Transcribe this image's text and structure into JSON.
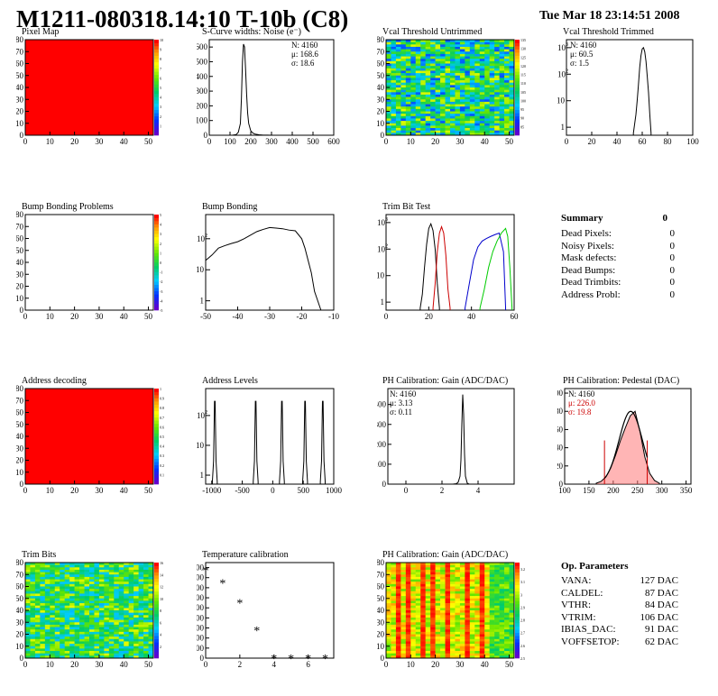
{
  "header": {
    "title": "M1211-080318.14:10 T-10b (C8)",
    "date": "Tue Mar 18 23:14:51 2008"
  },
  "panels": {
    "pixel_map": {
      "title": "Pixel Map",
      "x_ticks": [
        "0",
        "10",
        "20",
        "30",
        "40",
        "50"
      ],
      "y_ticks": [
        "0",
        "10",
        "20",
        "30",
        "40",
        "50",
        "60",
        "70",
        "80"
      ],
      "z_ticks": [
        "1",
        "2",
        "3",
        "4",
        "5",
        "6",
        "7",
        "8",
        "9",
        "10"
      ]
    },
    "noise": {
      "title": "S-Curve widths: Noise (e⁻)",
      "stats": [
        "N: 4160",
        "μ: 168.6",
        "σ: 18.6"
      ],
      "x_ticks": [
        "0",
        "100",
        "200",
        "300",
        "400",
        "500",
        "600"
      ],
      "y_ticks": [
        "0",
        "100",
        "200",
        "300",
        "400",
        "500",
        "600"
      ]
    },
    "vcal_untrimmed": {
      "title": "Vcal Threshold Untrimmed",
      "z_ticks": [
        "85",
        "90",
        "95",
        "100",
        "105",
        "110",
        "115",
        "120",
        "125",
        "130",
        "135"
      ]
    },
    "vcal_trimmed": {
      "title": "Vcal Threshold Trimmed",
      "stats": [
        "N: 4160",
        "μ: 60.5",
        "σ:  1.5"
      ],
      "x_ticks": [
        "0",
        "20",
        "40",
        "60",
        "80",
        "100"
      ]
    },
    "bump_problems": {
      "title": "Bump Bonding Problems",
      "z_ticks": [
        "-5",
        "-4",
        "-3",
        "-2",
        "-1",
        "0",
        "1",
        "2",
        "3",
        "4",
        "5"
      ]
    },
    "bump_bonding": {
      "title": "Bump Bonding",
      "x_ticks": [
        "-50",
        "-40",
        "-30",
        "-20",
        "-10"
      ]
    },
    "trim_bit": {
      "title": "Trim Bit Test",
      "x_ticks": [
        "0",
        "20",
        "40",
        "60"
      ]
    },
    "address_decoding": {
      "title": "Address decoding",
      "z_ticks": [
        "0.1",
        "0.2",
        "0.3",
        "0.4",
        "0.5",
        "0.6",
        "0.7",
        "0.8",
        "0.9",
        "1"
      ]
    },
    "address_levels": {
      "title": "Address Levels",
      "x_ticks": [
        "-1000",
        "-500",
        "0",
        "500",
        "1000"
      ]
    },
    "ph_gain": {
      "title": "PH Calibration: Gain (ADC/DAC)",
      "stats": [
        "N: 4160",
        "μ: 3.13",
        "σ: 0.11"
      ],
      "x_ticks": [
        "0",
        "2",
        "4"
      ],
      "y_ticks": [
        "0",
        "100",
        "200",
        "300",
        "400"
      ]
    },
    "ph_pedestal": {
      "title": "PH Calibration: Pedestal (DAC)",
      "stats": [
        "N: 4160",
        "μ: 226.0",
        "σ: 19.8"
      ],
      "x_ticks": [
        "100",
        "150",
        "200",
        "250",
        "300",
        "350"
      ],
      "y_ticks": [
        "0",
        "20",
        "40",
        "60",
        "80",
        "100"
      ]
    },
    "trim_bits": {
      "title": "Trim Bits",
      "z_ticks": [
        "2",
        "4",
        "6",
        "8",
        "10",
        "12",
        "14",
        "16"
      ]
    },
    "temperature": {
      "title": "Temperature calibration",
      "x_ticks": [
        "0",
        "2",
        "4",
        "6"
      ],
      "y_ticks": [
        "0",
        "200",
        "400",
        "600",
        "800",
        "1000",
        "1200",
        "1400",
        "1600",
        "1800"
      ]
    },
    "ph_gain_map": {
      "title": "PH Calibration: Gain (ADC/DAC)",
      "z_ticks": [
        "2.5",
        "2.6",
        "2.7",
        "2.8",
        "2.9",
        "3",
        "3.1",
        "3.2"
      ]
    }
  },
  "summary": {
    "heading": "Summary",
    "heading_value": "0",
    "rows": [
      {
        "label": "Dead Pixels:",
        "value": "0"
      },
      {
        "label": "Noisy Pixels:",
        "value": "0"
      },
      {
        "label": "Mask defects:",
        "value": "0"
      },
      {
        "label": "Dead Bumps:",
        "value": "0"
      },
      {
        "label": "Dead Trimbits:",
        "value": "0"
      },
      {
        "label": "Address Probl:",
        "value": "0"
      }
    ]
  },
  "op_params": {
    "heading": "Op. Parameters",
    "rows": [
      {
        "label": "VANA:",
        "value": "127 DAC"
      },
      {
        "label": "CALDEL:",
        "value": "87 DAC"
      },
      {
        "label": "VTHR:",
        "value": "84 DAC"
      },
      {
        "label": "VTRIM:",
        "value": "106 DAC"
      },
      {
        "label": "IBIAS_DAC:",
        "value": "91 DAC"
      },
      {
        "label": "VOFFSETOP:",
        "value": "62 DAC"
      }
    ]
  },
  "chart_data": [
    {
      "type": "heatmap",
      "title": "Pixel Map",
      "xlim": [
        0,
        52
      ],
      "ylim": [
        0,
        80
      ],
      "zlim": [
        0,
        10
      ],
      "fill_value": 10,
      "color": "#ff0000"
    },
    {
      "type": "line",
      "title": "S-Curve widths: Noise (e⁻)",
      "xlim": [
        0,
        600
      ],
      "ylim": [
        0,
        650
      ],
      "x": [
        100,
        110,
        120,
        130,
        140,
        150,
        155,
        160,
        165,
        170,
        175,
        180,
        185,
        190,
        200,
        210,
        220,
        240,
        260,
        280,
        300
      ],
      "y": [
        0,
        0,
        2,
        5,
        20,
        80,
        250,
        500,
        620,
        600,
        450,
        280,
        150,
        80,
        30,
        15,
        8,
        3,
        1,
        1,
        0
      ]
    },
    {
      "type": "heatmap",
      "title": "Vcal Threshold Untrimmed",
      "xlim": [
        0,
        52
      ],
      "ylim": [
        0,
        80
      ],
      "zlim": [
        80,
        135
      ]
    },
    {
      "type": "line",
      "title": "Vcal Threshold Trimmed",
      "log_y": true,
      "xlim": [
        0,
        100
      ],
      "ylim": [
        0.5,
        2000
      ],
      "x": [
        53,
        55,
        56,
        57,
        58,
        59,
        60,
        61,
        62,
        63,
        64,
        65,
        66,
        67
      ],
      "y": [
        0.6,
        3,
        10,
        40,
        180,
        500,
        900,
        1000,
        700,
        300,
        80,
        20,
        3,
        0.6
      ]
    },
    {
      "type": "heatmap",
      "title": "Bump Bonding Problems",
      "xlim": [
        0,
        52
      ],
      "ylim": [
        0,
        80
      ],
      "zlim": [
        -5,
        5
      ]
    },
    {
      "type": "line",
      "title": "Bump Bonding",
      "log_y": true,
      "xlim": [
        -50,
        -10
      ],
      "ylim": [
        0.5,
        600
      ],
      "x": [
        -50,
        -48,
        -46,
        -44,
        -42,
        -40,
        -38,
        -36,
        -34,
        -32,
        -30,
        -28,
        -26,
        -24,
        -22,
        -20,
        -19,
        -18,
        -17,
        -16,
        -15,
        -14
      ],
      "y": [
        20,
        30,
        50,
        60,
        70,
        80,
        100,
        130,
        170,
        200,
        230,
        220,
        210,
        190,
        180,
        100,
        50,
        20,
        8,
        2,
        1,
        0.5
      ]
    },
    {
      "type": "line",
      "title": "Trim Bit Test",
      "log_y": true,
      "xlim": [
        0,
        60
      ],
      "ylim": [
        0.5,
        2000
      ],
      "series": [
        {
          "color": "#000000",
          "x": [
            16,
            17,
            18,
            19,
            20,
            21,
            22,
            23,
            24,
            25
          ],
          "y": [
            0.6,
            2,
            20,
            150,
            600,
            900,
            500,
            100,
            5,
            0.6
          ]
        },
        {
          "color": "#cc0000",
          "x": [
            22,
            23,
            24,
            25,
            26,
            27,
            28,
            29,
            30
          ],
          "y": [
            0.6,
            5,
            80,
            400,
            700,
            400,
            60,
            3,
            0.6
          ]
        },
        {
          "color": "#0000cc",
          "x": [
            37,
            39,
            41,
            43,
            45,
            47,
            49,
            51,
            53,
            55,
            56
          ],
          "y": [
            0.6,
            5,
            40,
            120,
            200,
            250,
            300,
            350,
            400,
            80,
            0.6
          ]
        },
        {
          "color": "#00cc00",
          "x": [
            44,
            46,
            48,
            50,
            52,
            54,
            56,
            57,
            58,
            59
          ],
          "y": [
            0.6,
            3,
            20,
            80,
            200,
            400,
            600,
            300,
            20,
            0.6
          ]
        }
      ]
    },
    {
      "type": "heatmap",
      "title": "Address decoding",
      "xlim": [
        0,
        52
      ],
      "ylim": [
        0,
        80
      ],
      "zlim": [
        0,
        1
      ],
      "fill_value": 1,
      "color": "#ff0000"
    },
    {
      "type": "line",
      "title": "Address Levels",
      "log_y": true,
      "xlim": [
        -1100,
        1000
      ],
      "ylim": [
        0.5,
        800
      ],
      "peaks": [
        -950,
        -280,
        150,
        530,
        820
      ],
      "peak_height": 300
    },
    {
      "type": "line",
      "title": "PH Calibration: Gain (ADC/DAC)",
      "xlim": [
        -1,
        6
      ],
      "ylim": [
        0,
        480
      ],
      "x": [
        2.6,
        2.8,
        2.9,
        3.0,
        3.05,
        3.1,
        3.15,
        3.2,
        3.25,
        3.3,
        3.4,
        3.5
      ],
      "y": [
        0,
        2,
        10,
        40,
        120,
        300,
        450,
        350,
        150,
        40,
        5,
        0
      ]
    },
    {
      "type": "line",
      "title": "PH Calibration: Pedestal (DAC)",
      "xlim": [
        100,
        360
      ],
      "ylim": [
        0,
        105
      ],
      "x": [
        165,
        175,
        185,
        195,
        205,
        215,
        225,
        235,
        245,
        255,
        265,
        275,
        285,
        295
      ],
      "y": [
        1,
        3,
        8,
        18,
        32,
        48,
        62,
        75,
        80,
        58,
        30,
        12,
        4,
        1
      ],
      "fit_range": [
        182,
        270
      ]
    },
    {
      "type": "heatmap",
      "title": "Trim Bits",
      "xlim": [
        0,
        52
      ],
      "ylim": [
        0,
        80
      ],
      "zlim": [
        0,
        16
      ]
    },
    {
      "type": "scatter",
      "title": "Temperature calibration",
      "xlim": [
        0,
        7.5
      ],
      "ylim": [
        0,
        1900
      ],
      "x": [
        0,
        1,
        2,
        3,
        4,
        5,
        6,
        7
      ],
      "y": [
        1750,
        1500,
        1100,
        560,
        0,
        0,
        0,
        0
      ]
    },
    {
      "type": "heatmap",
      "title": "PH Calibration: Gain (ADC/DAC)",
      "xlim": [
        0,
        52
      ],
      "ylim": [
        0,
        80
      ],
      "zlim": [
        2.5,
        3.25
      ]
    }
  ]
}
